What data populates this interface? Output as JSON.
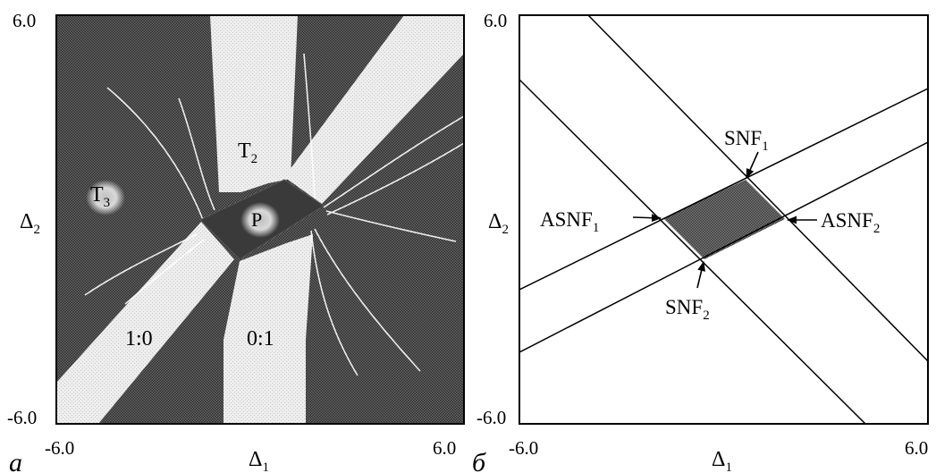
{
  "panels": {
    "left": {
      "panel_letter": "a",
      "axes": {
        "xlabel_base": "Δ",
        "xlabel_sub": "1",
        "ylabel_base": "Δ",
        "ylabel_sub": "2",
        "x_min_label": "-6.0",
        "x_max_label": "6.0",
        "y_min_label": "-6.0",
        "y_max_label": "6.0",
        "xlim": [
          -6.0,
          6.0
        ],
        "ylim": [
          -6.0,
          6.0
        ]
      },
      "region_labels": {
        "t2_base": "T",
        "t2_sub": "2",
        "t3_base": "T",
        "t3_sub": "3",
        "p": "P",
        "ratio_1_0": "1:0",
        "ratio_0_1": "0:1"
      },
      "colors": {
        "dark_region": "#4a4a4a",
        "light_region": "#e9e9e9",
        "frame": "#000000"
      }
    },
    "right": {
      "panel_letter": "б",
      "axes": {
        "xlabel_base": "Δ",
        "xlabel_sub": "1",
        "ylabel_base": "Δ",
        "ylabel_sub": "2",
        "x_min_label": "-6.0",
        "x_max_label": "6.0",
        "y_min_label": "-6.0",
        "y_max_label": "6.0",
        "xlim": [
          -6.0,
          6.0
        ],
        "ylim": [
          -6.0,
          6.0
        ]
      },
      "annotations": {
        "snf1_base": "SNF",
        "snf1_sub": "1",
        "snf2_base": "SNF",
        "snf2_sub": "2",
        "asnf1_base": "ASNF",
        "asnf1_sub": "1",
        "asnf2_base": "ASNF",
        "asnf2_sub": "2"
      },
      "colors": {
        "center_region": "#5a5a5a",
        "lines": "#000000"
      }
    }
  }
}
